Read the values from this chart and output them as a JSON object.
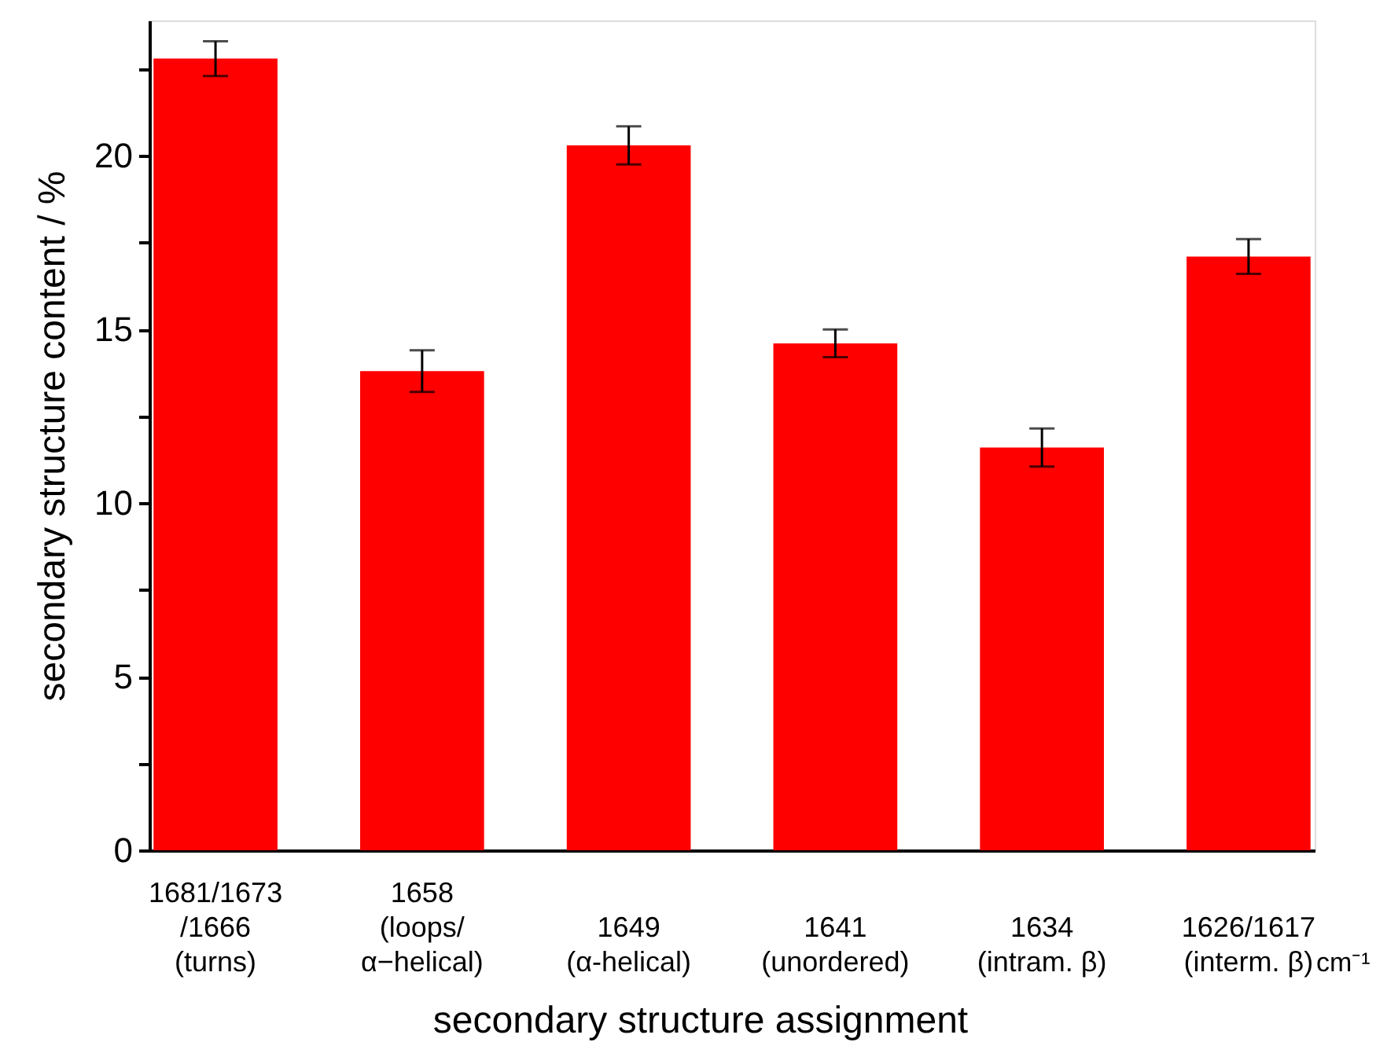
{
  "chart_data": {
    "type": "bar",
    "xlabel": "secondary structure assignment",
    "ylabel": "secondary structure content / %",
    "categories": [
      "1681/1673\n/1666\n(turns)",
      "1658\n(loops/\nα−helical)",
      "1649\n(α-helical)",
      "1641\n(unordered)",
      "1634\n(intram. β)",
      "1626/1617\n(interm. β)"
    ],
    "values": [
      22.8,
      13.8,
      20.3,
      14.6,
      11.6,
      17.1
    ],
    "errors": [
      0.5,
      0.6,
      0.55,
      0.4,
      0.55,
      0.5
    ],
    "color": "#ff0000",
    "ylim": [
      0,
      23.9
    ],
    "yticks": [
      0,
      {
        "value": 2.5,
        "label": null
      },
      5,
      {
        "value": 7.5,
        "label": null
      },
      10,
      {
        "value": 12.5,
        "label": null
      },
      15,
      {
        "value": 17.5,
        "label": null
      },
      20,
      {
        "value": 22.5,
        "label": null
      }
    ],
    "annotations": [
      "cm⁻¹"
    ],
    "grid": false
  }
}
